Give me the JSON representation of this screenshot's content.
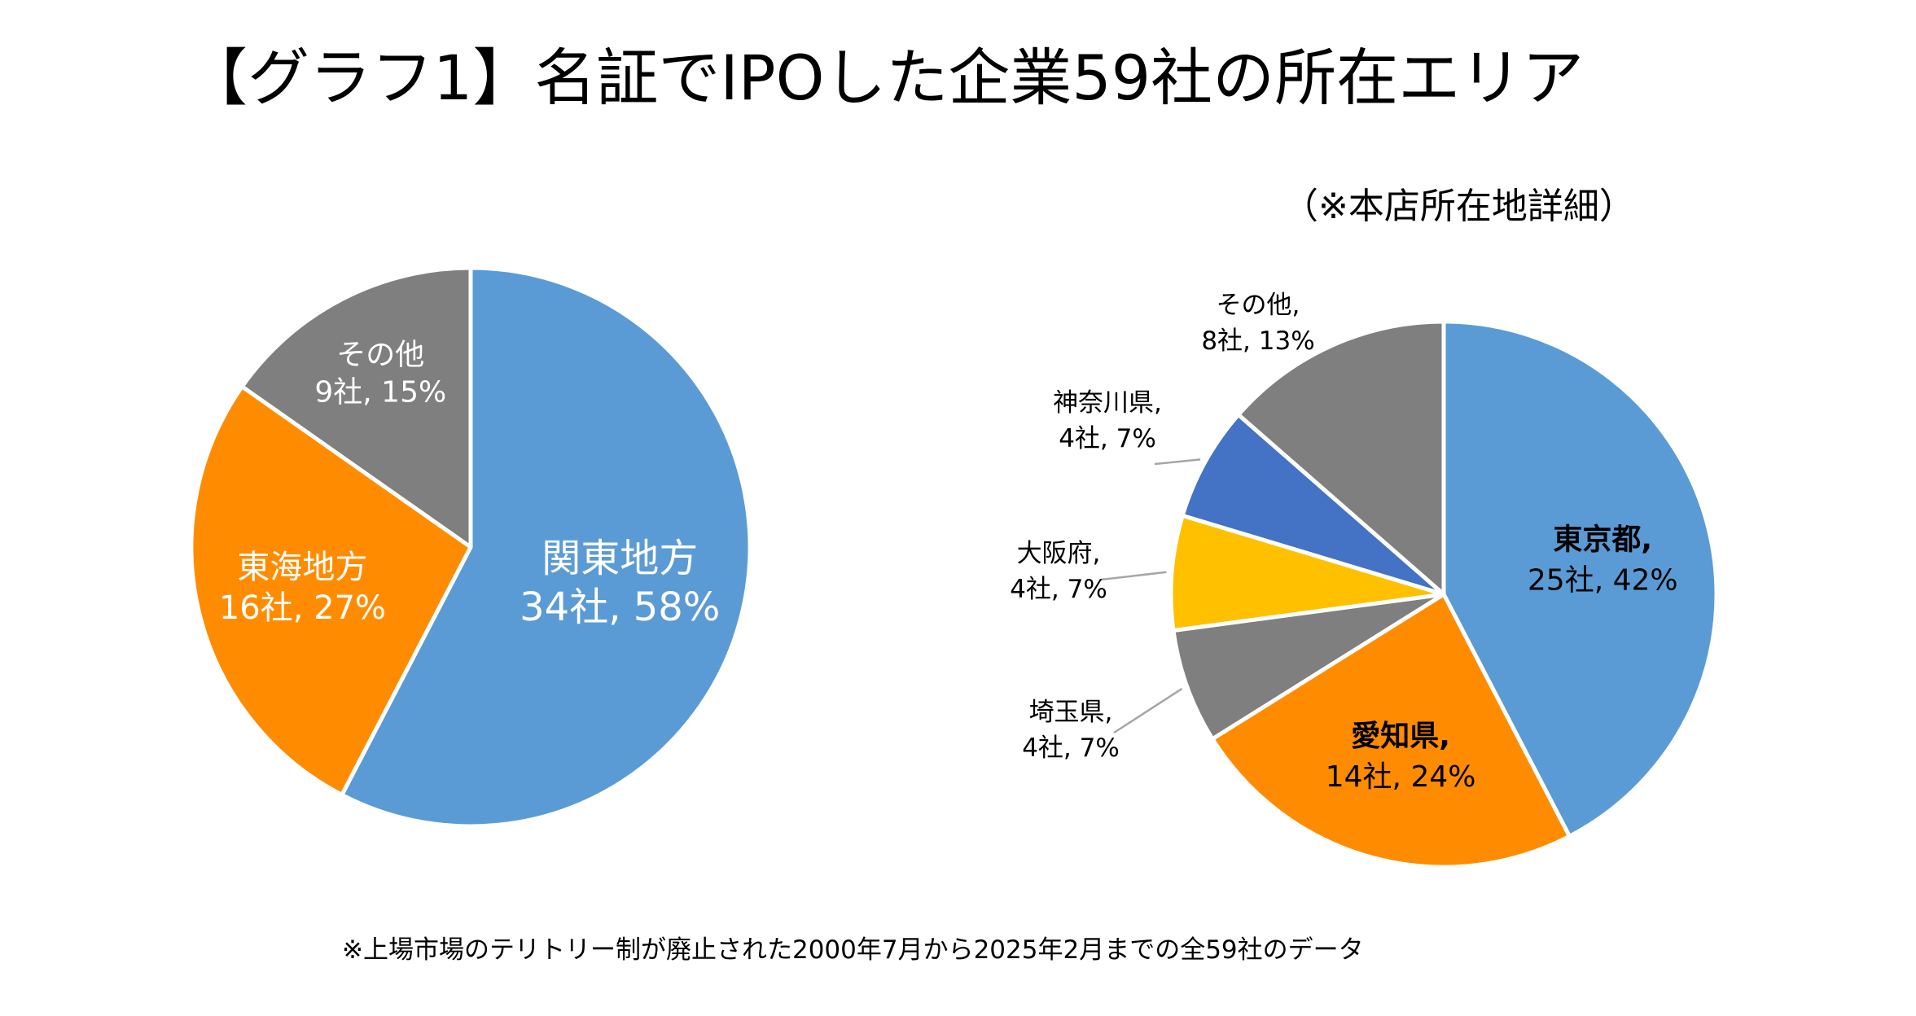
{
  "title": "【グラフ1】名証でIPOした企業59社の所在エリア",
  "subtitle": "（※本店所在地詳細）",
  "footnote": "※上場市場のテリトリー制が廃止された2000年7月から2025年2月までの全59社のデータ",
  "chart_data": [
    {
      "type": "pie",
      "title": "",
      "slices": [
        {
          "name": "関東地方",
          "value": 34,
          "percent": 58,
          "label": "34社, 58%",
          "color": "#5B9BD5"
        },
        {
          "name": "東海地方",
          "value": 16,
          "percent": 27,
          "label": "16社, 27%",
          "color": "#FF8C00"
        },
        {
          "name": "その他",
          "value": 9,
          "percent": 15,
          "label": "9社, 15%",
          "color": "#7F7F7F"
        }
      ]
    },
    {
      "type": "pie",
      "title": "（※本店所在地詳細）",
      "slices": [
        {
          "name": "東京都,",
          "value": 25,
          "percent": 42,
          "label": "25社, 42%",
          "color": "#5B9BD5"
        },
        {
          "name": "愛知県,",
          "value": 14,
          "percent": 24,
          "label": "14社, 24%",
          "color": "#FF8C00"
        },
        {
          "name": "埼玉県,",
          "value": 4,
          "percent": 7,
          "label": "4社, 7%",
          "color": "#7F7F7F"
        },
        {
          "name": "大阪府,",
          "value": 4,
          "percent": 7,
          "label": "4社, 7%",
          "color": "#FFC000"
        },
        {
          "name": "神奈川県,",
          "value": 4,
          "percent": 7,
          "label": "4社, 7%",
          "color": "#4472C4"
        },
        {
          "name": "その他,",
          "value": 8,
          "percent": 13,
          "label": "8社, 13%",
          "color": "#7F7F7F"
        }
      ]
    }
  ]
}
